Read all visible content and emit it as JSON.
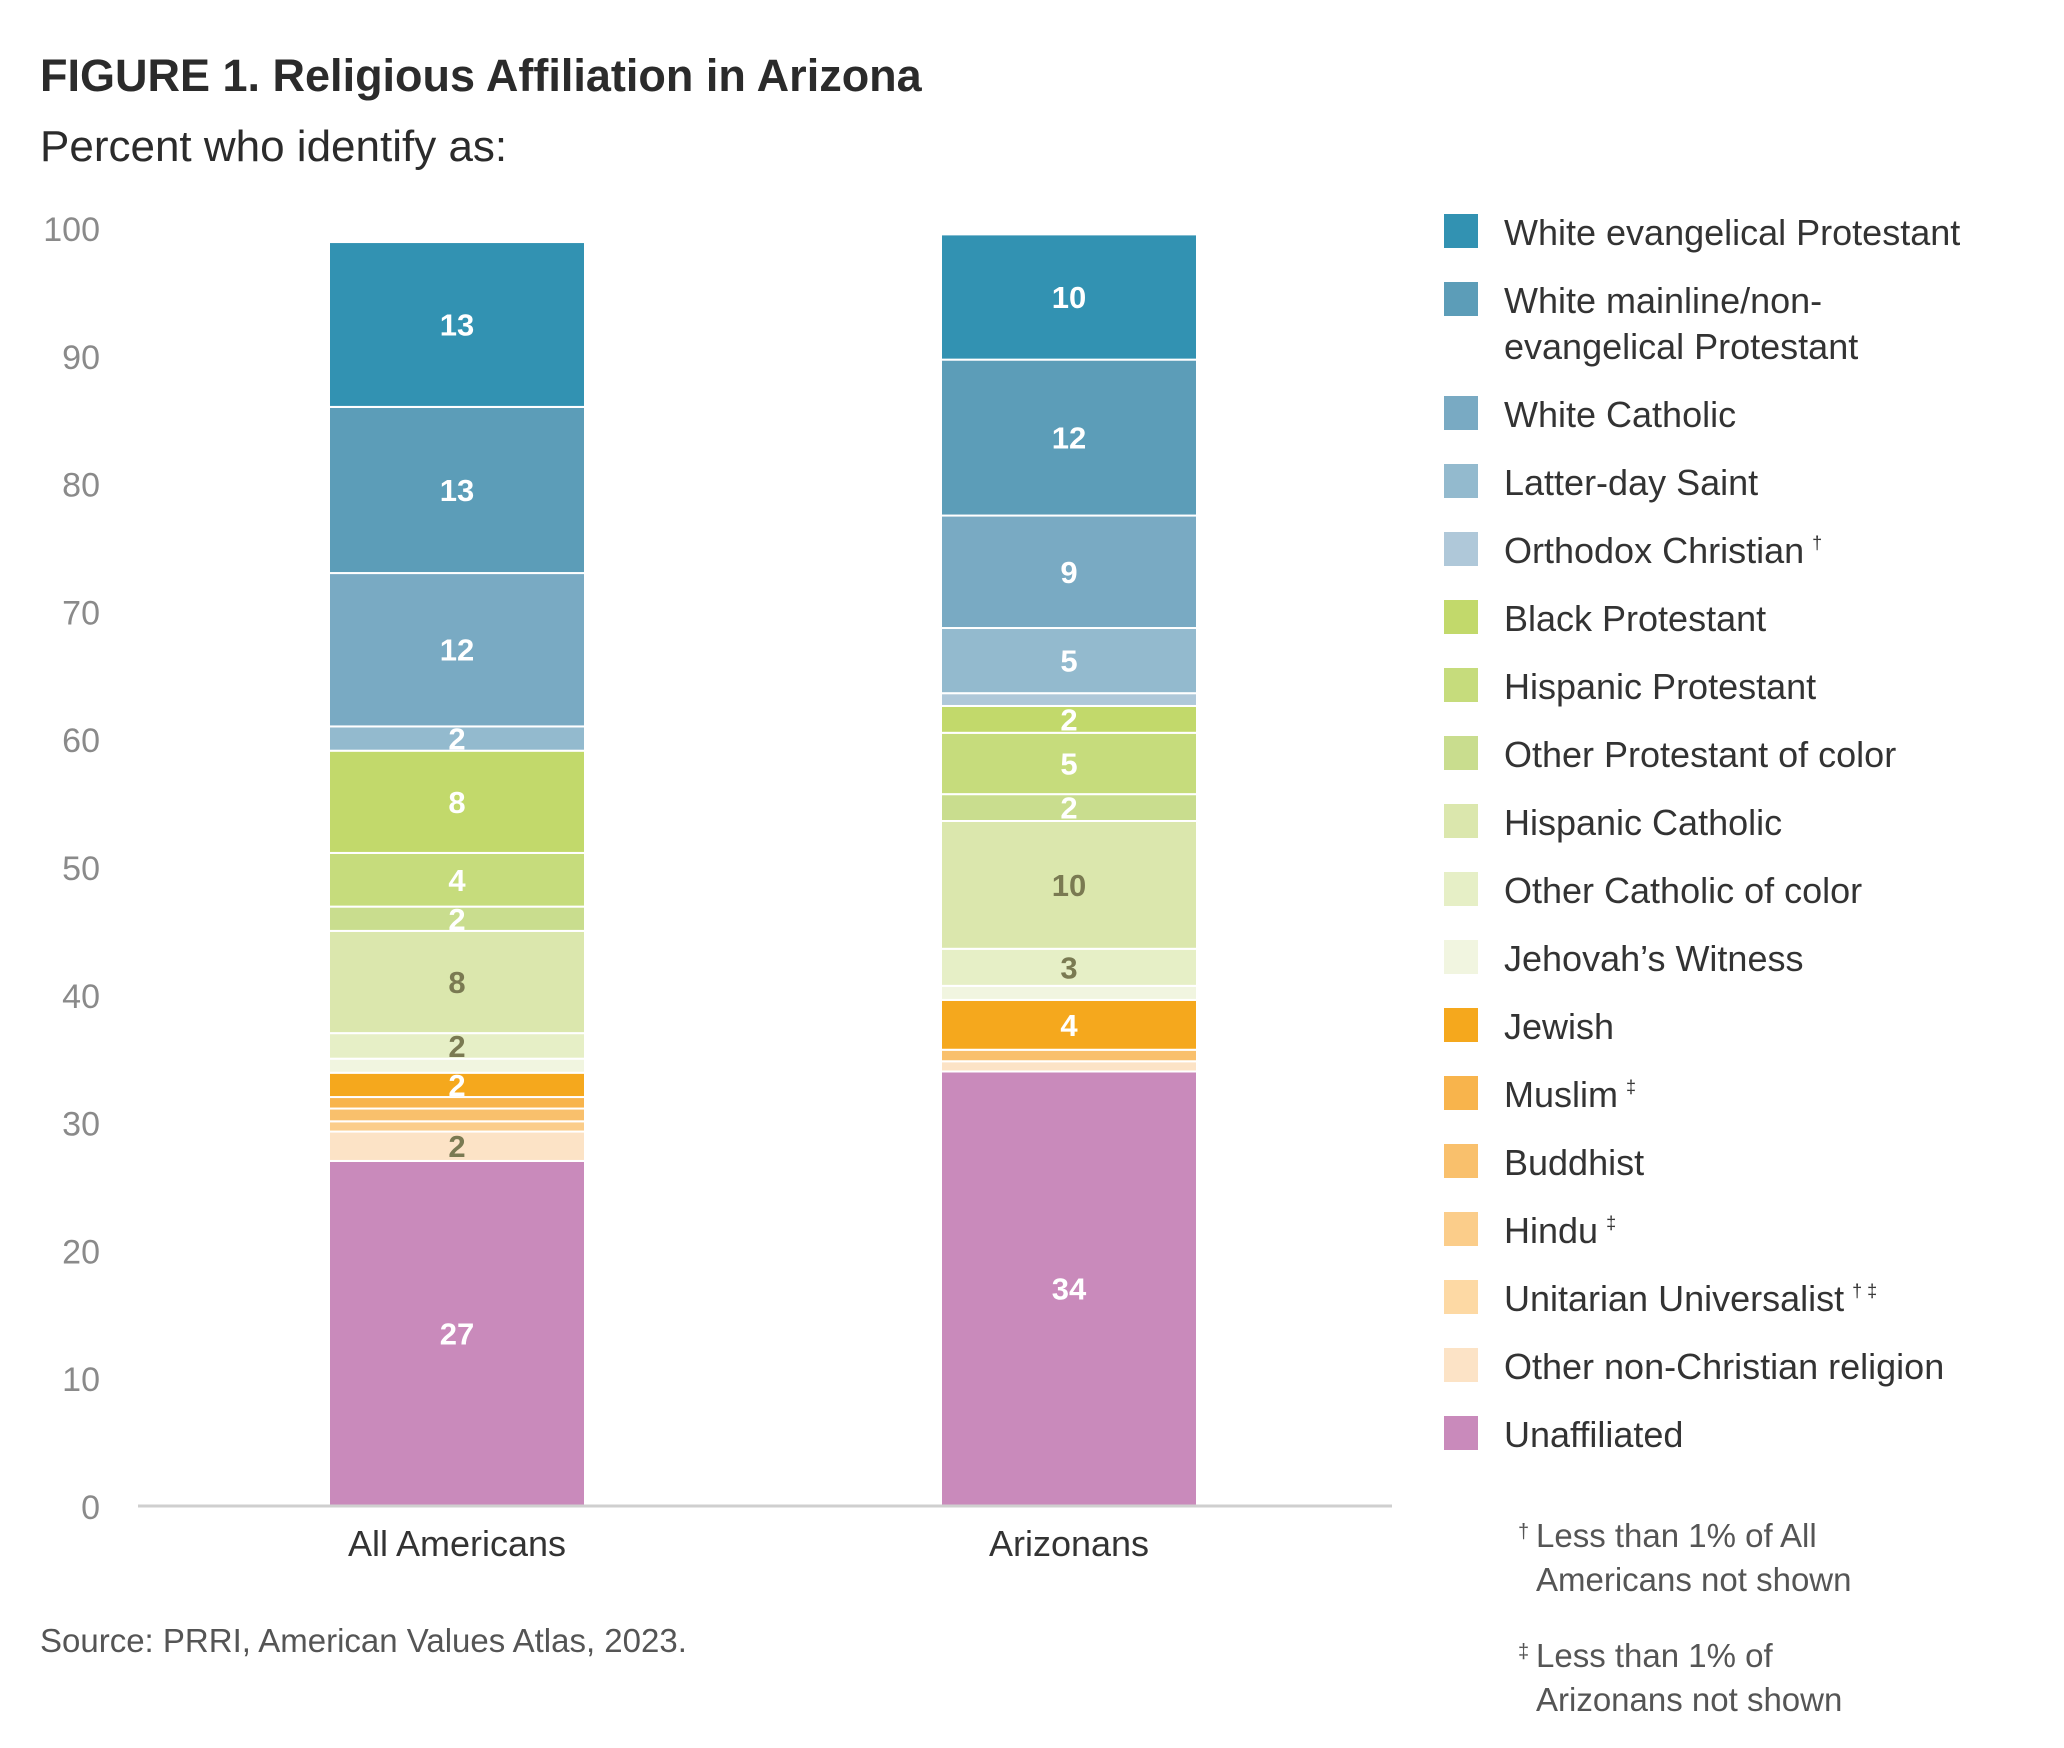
{
  "chart_data": {
    "type": "bar",
    "stacked": true,
    "title": "FIGURE 1. Religious Affiliation in Arizona",
    "subtitle": "Percent who identify as:",
    "ylim": [
      0,
      100
    ],
    "yticks": [
      0,
      10,
      20,
      30,
      40,
      50,
      60,
      70,
      80,
      90,
      100
    ],
    "categories": [
      "All Americans",
      "Arizonans"
    ],
    "series": [
      {
        "name": "Unaffiliated",
        "color": "#c98abb",
        "values": [
          27,
          34
        ],
        "labels": [
          "27",
          "34"
        ],
        "label_color": "#ffffff"
      },
      {
        "name": "Other non-Christian religion",
        "color": "#fce3c6",
        "values": [
          2.3,
          0.8
        ],
        "labels": [
          "2",
          ""
        ],
        "label_color": "#7a7a52"
      },
      {
        "name": "Unitarian Universalist",
        "sup": "† ‡",
        "color": "#fdd9a4",
        "values": [
          0,
          0
        ],
        "labels": [
          "",
          ""
        ],
        "label_color": "#ffffff"
      },
      {
        "name": "Hindu",
        "sup": "‡",
        "color": "#fbcd8a",
        "values": [
          0.8,
          0
        ],
        "labels": [
          "",
          ""
        ],
        "label_color": "#ffffff"
      },
      {
        "name": "Buddhist",
        "color": "#f9c06c",
        "values": [
          1,
          0.9
        ],
        "labels": [
          "",
          ""
        ],
        "label_color": "#ffffff"
      },
      {
        "name": "Muslim",
        "sup": "‡",
        "color": "#f8b44c",
        "values": [
          0.9,
          0
        ],
        "labels": [
          "",
          ""
        ],
        "label_color": "#ffffff"
      },
      {
        "name": "Jewish",
        "color": "#f5a81d",
        "values": [
          1.9,
          3.9
        ],
        "labels": [
          "2",
          "4"
        ],
        "label_color": "#ffffff"
      },
      {
        "name": "Jehovah’s Witness",
        "color": "#f1f5e0",
        "values": [
          1.1,
          1.1
        ],
        "labels": [
          "",
          ""
        ],
        "label_color": "#7a7a52"
      },
      {
        "name": "Other Catholic of color",
        "color": "#e6efc6",
        "values": [
          2,
          2.9
        ],
        "labels": [
          "2",
          "3"
        ],
        "label_color": "#7a7a52"
      },
      {
        "name": "Hispanic Catholic",
        "color": "#dbe7ad",
        "values": [
          8,
          10
        ],
        "labels": [
          "8",
          "10"
        ],
        "label_color": "#7a7a52"
      },
      {
        "name": "Other Protestant of color",
        "color": "#c9dd8e",
        "values": [
          1.9,
          2.1
        ],
        "labels": [
          "2",
          "2"
        ],
        "label_color": "#ffffff"
      },
      {
        "name": "Hispanic Protestant",
        "color": "#c6dc7c",
        "values": [
          4.2,
          4.8
        ],
        "labels": [
          "4",
          "5"
        ],
        "label_color": "#ffffff"
      },
      {
        "name": "Black Protestant",
        "color": "#c2d96b",
        "values": [
          8,
          2.1
        ],
        "labels": [
          "8",
          "2"
        ],
        "label_color": "#ffffff"
      },
      {
        "name": "Orthodox Christian",
        "sup": "†",
        "color": "#afc8d9",
        "values": [
          0,
          1
        ],
        "labels": [
          "",
          ""
        ],
        "label_color": "#ffffff"
      },
      {
        "name": "Latter-day Saint",
        "color": "#93bace",
        "values": [
          1.9,
          5.1
        ],
        "labels": [
          "2",
          "5"
        ],
        "label_color": "#ffffff"
      },
      {
        "name": "White Catholic",
        "color": "#79aac3",
        "values": [
          12,
          8.8
        ],
        "labels": [
          "12",
          "9"
        ],
        "label_color": "#ffffff"
      },
      {
        "name": "White mainline/non-evangelical Protestant",
        "name_lines": [
          "White mainline/non-",
          "evangelical Protestant"
        ],
        "color": "#5c9db8",
        "values": [
          13,
          12.2
        ],
        "labels": [
          "13",
          "12"
        ],
        "label_color": "#ffffff"
      },
      {
        "name": "White evangelical Protestant",
        "color": "#3292b2",
        "values": [
          12.9,
          9.8
        ],
        "labels": [
          "13",
          "10"
        ],
        "label_color": "#ffffff"
      }
    ],
    "legend_position": "right",
    "grid": false
  },
  "notes": [
    {
      "mark": "†",
      "lines": [
        "Less than 1% of All",
        "Americans not shown"
      ]
    },
    {
      "mark": "‡",
      "lines": [
        "Less than 1% of",
        "Arizonans not shown"
      ]
    }
  ],
  "source": "Source: PRRI, American Values Atlas, 2023."
}
